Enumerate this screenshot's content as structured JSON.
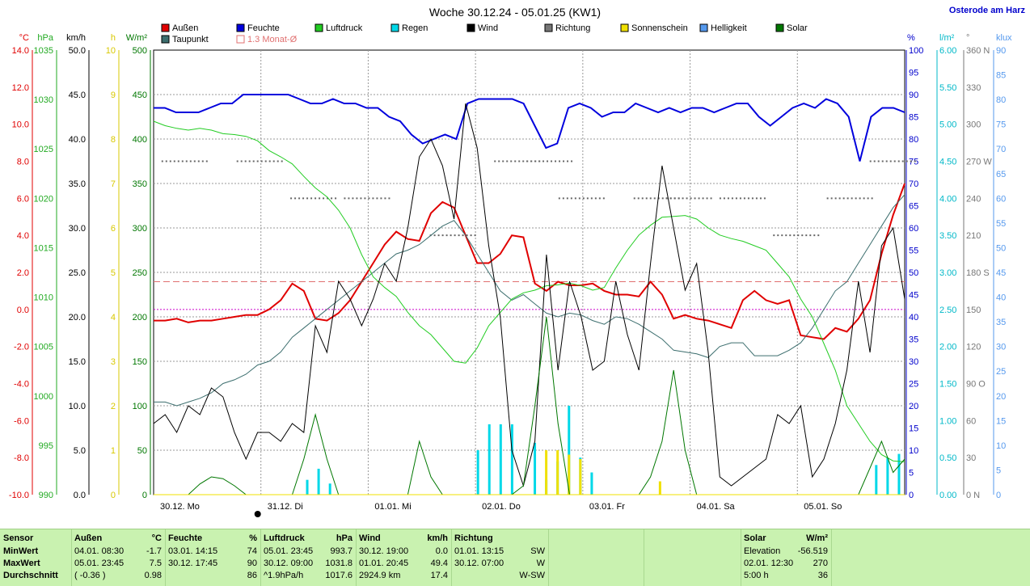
{
  "header": {
    "title": "Woche 30.12.24 - 05.01.25 (KW1)",
    "station": "Osterode am Harz"
  },
  "legend": [
    {
      "label": "Außen",
      "color": "#e00000"
    },
    {
      "label": "Taupunkt",
      "color": "#3c6e6e"
    },
    {
      "label": "Feuchte",
      "color": "#0000dd"
    },
    {
      "label": "1.3 Monat-Ø",
      "color": "#e07070"
    },
    {
      "label": "Luftdruck",
      "color": "#22cc22"
    },
    {
      "label": "Regen",
      "color": "#00d8e8"
    },
    {
      "label": "Wind",
      "color": "#000000"
    },
    {
      "label": "Richtung",
      "color": "#777777"
    },
    {
      "label": "Sonnenschein",
      "color": "#f0e000"
    },
    {
      "label": "Helligkeit",
      "color": "#5599ee"
    },
    {
      "label": "Solar",
      "color": "#007700"
    }
  ],
  "chart_data": {
    "type": "line",
    "x_labels": [
      "30.12. Mo",
      "31.12. Di",
      "01.01. Mi",
      "02.01. Do",
      "03.01. Fr",
      "04.01. Sa",
      "05.01. So"
    ],
    "axes_left": [
      {
        "unit": "°C",
        "color": "#e00000",
        "ticks": [
          "14.0",
          "12.0",
          "10.0",
          "8.0",
          "6.0",
          "4.0",
          "2.0",
          "0.0",
          "-2.0",
          "-4.0",
          "-6.0",
          "-8.0",
          "-10.0"
        ]
      },
      {
        "unit": "hPa",
        "color": "#22aa22",
        "ticks": [
          "1035",
          "1030",
          "1025",
          "1020",
          "1015",
          "1010",
          "1005",
          "1000",
          "995",
          "990"
        ]
      },
      {
        "unit": "km/h",
        "color": "#000000",
        "ticks": [
          "50.0",
          "45.0",
          "40.0",
          "35.0",
          "30.0",
          "25.0",
          "20.0",
          "15.0",
          "10.0",
          "5.0",
          "0.0"
        ]
      },
      {
        "unit": "h",
        "color": "#d8c800",
        "ticks": [
          "10",
          "9",
          "8",
          "7",
          "6",
          "5",
          "4",
          "3",
          "2",
          "1",
          "0"
        ]
      },
      {
        "unit": "W/m²",
        "color": "#007700",
        "ticks": [
          "500",
          "450",
          "400",
          "350",
          "300",
          "250",
          "200",
          "150",
          "100",
          "50",
          "0"
        ]
      }
    ],
    "axes_right": [
      {
        "unit": "%",
        "color": "#0000cc",
        "ticks": [
          "100",
          "95",
          "90",
          "85",
          "80",
          "75",
          "70",
          "65",
          "60",
          "55",
          "50",
          "45",
          "40",
          "35",
          "30",
          "25",
          "20",
          "15",
          "10",
          "5",
          "0"
        ]
      },
      {
        "unit": "l/m²",
        "color": "#00b8c8",
        "ticks": [
          "6.00",
          "5.50",
          "5.00",
          "4.50",
          "4.00",
          "3.50",
          "3.00",
          "2.50",
          "2.00",
          "1.50",
          "1.00",
          "0.50",
          "0.00"
        ]
      },
      {
        "unit": "°",
        "color": "#777777",
        "ticks": [
          "360 N",
          "330",
          "300",
          "270 W",
          "240",
          "210",
          "180 S",
          "150",
          "120",
          "90 O",
          "60",
          "30",
          "0 N"
        ]
      },
      {
        "unit": "klux",
        "color": "#5599ee",
        "ticks": [
          "90",
          "85",
          "80",
          "75",
          "70",
          "65",
          "60",
          "55",
          "50",
          "45",
          "40",
          "35",
          "30",
          "25",
          "20",
          "15",
          "10",
          "5",
          "0"
        ]
      }
    ],
    "avg_temp_line": 1.5,
    "series": [
      {
        "name": "Außen",
        "color": "#e00000",
        "axis": "temp",
        "values": [
          -0.6,
          -0.6,
          -0.5,
          -0.7,
          -0.6,
          -0.6,
          -0.5,
          -0.4,
          -0.3,
          -0.3,
          0.0,
          0.5,
          1.4,
          1.0,
          -0.5,
          -0.6,
          -0.2,
          0.5,
          1.5,
          2.5,
          3.5,
          4.2,
          3.8,
          3.7,
          5.2,
          5.8,
          5.5,
          4.0,
          2.5,
          2.5,
          3.0,
          4.0,
          3.9,
          1.4,
          1.0,
          1.5,
          1.3,
          1.3,
          1.4,
          1.0,
          0.8,
          0.8,
          0.7,
          1.5,
          0.8,
          -0.5,
          -0.3,
          -0.5,
          -0.6,
          -0.8,
          -1.0,
          0.5,
          1.0,
          0.5,
          0.3,
          0.5,
          -1.4,
          -1.5,
          -1.6,
          -1.0,
          -1.2,
          -0.5,
          0.5,
          3.0,
          5.1,
          6.8
        ]
      },
      {
        "name": "Taupunkt",
        "color": "#3c6e6e",
        "axis": "temp",
        "values": [
          -5.0,
          -5.0,
          -5.2,
          -5.0,
          -4.8,
          -4.5,
          -4.0,
          -3.8,
          -3.5,
          -3.0,
          -2.8,
          -2.3,
          -1.5,
          -1.0,
          -0.5,
          0.0,
          0.5,
          1.0,
          1.5,
          2.0,
          2.5,
          3.0,
          3.2,
          3.5,
          4.0,
          4.5,
          4.8,
          4.0,
          3.0,
          2.0,
          1.0,
          0.5,
          0.8,
          0.3,
          -0.2,
          -0.4,
          -0.2,
          -0.3,
          -0.6,
          -0.8,
          -0.4,
          -0.5,
          -0.8,
          -1.2,
          -1.6,
          -2.2,
          -2.3,
          -2.4,
          -2.6,
          -2.0,
          -1.8,
          -1.8,
          -2.5,
          -2.5,
          -2.5,
          -2.2,
          -1.8,
          -1.0,
          0.0,
          1.0,
          1.5,
          2.5,
          3.5,
          4.5,
          5.5,
          6.2
        ]
      },
      {
        "name": "Feuchte",
        "color": "#0000dd",
        "axis": "rh",
        "values": [
          87,
          87,
          86,
          86,
          86,
          87,
          88,
          88,
          90,
          90,
          90,
          90,
          90,
          89,
          88,
          88,
          89,
          88,
          88,
          87,
          87,
          85,
          84,
          81,
          79,
          80,
          81,
          80,
          88,
          89,
          89,
          89,
          89,
          88,
          83,
          78,
          79,
          87,
          88,
          87,
          85,
          86,
          86,
          88,
          87,
          86,
          87,
          86,
          87,
          87,
          86,
          87,
          88,
          88,
          85,
          83,
          85,
          87,
          88,
          87,
          89,
          88,
          85,
          75,
          85,
          87,
          87,
          86
        ]
      },
      {
        "name": "Luftdruck",
        "color": "#22cc22",
        "axis": "hpa",
        "values": [
          1032.0,
          1031.5,
          1031.2,
          1031.0,
          1031.2,
          1031.0,
          1030.6,
          1030.5,
          1030.3,
          1029.8,
          1028.7,
          1028.0,
          1027.2,
          1025.8,
          1024.5,
          1023.5,
          1022.0,
          1020.0,
          1017.0,
          1014.5,
          1013.3,
          1012.3,
          1010.5,
          1009.0,
          1008.0,
          1006.5,
          1005.0,
          1004.8,
          1006.5,
          1009.0,
          1010.5,
          1012.0,
          1012.7,
          1013.0,
          1013.5,
          1013.6,
          1013.8,
          1013.5,
          1013.0,
          1013.3,
          1015.5,
          1017.5,
          1019.2,
          1020.3,
          1021.2,
          1021.3,
          1021.4,
          1021.0,
          1020.0,
          1019.2,
          1018.8,
          1018.5,
          1018.0,
          1017.5,
          1016.0,
          1014.5,
          1012.0,
          1010.0,
          1007.0,
          1004.0,
          1000.0,
          998.0,
          996.0,
          994.5,
          993.8,
          993.7
        ]
      },
      {
        "name": "Wind",
        "color": "#000000",
        "axis": "kmh",
        "values": [
          8,
          9,
          7,
          10,
          9,
          12,
          11,
          7,
          4,
          7,
          7,
          6,
          8,
          7,
          19,
          16,
          24,
          22,
          19,
          22,
          26,
          24,
          30,
          38,
          40,
          37,
          31,
          44,
          39,
          28,
          20,
          5,
          1,
          6,
          27,
          14,
          24,
          20,
          14,
          15,
          24,
          18,
          14,
          26,
          37,
          30,
          23,
          26,
          16,
          2,
          1,
          2,
          3,
          4,
          9,
          8,
          10,
          2,
          4,
          8,
          14,
          24,
          16,
          28,
          30,
          22
        ]
      },
      {
        "name": "Solar",
        "color": "#007700",
        "axis": "wm2",
        "values": [
          0,
          0,
          0,
          0,
          12,
          20,
          18,
          10,
          0,
          0,
          0,
          0,
          0,
          40,
          90,
          40,
          0,
          0,
          0,
          0,
          0,
          0,
          0,
          60,
          20,
          0,
          0,
          0,
          0,
          0,
          0,
          0,
          10,
          100,
          200,
          80,
          0,
          0,
          0,
          0,
          0,
          0,
          0,
          20,
          60,
          140,
          50,
          0,
          0,
          0,
          0,
          0,
          0,
          0,
          0,
          0,
          0,
          0,
          0,
          0,
          0,
          0,
          30,
          60,
          25,
          40
        ]
      },
      {
        "name": "Regen",
        "color": "#00d8e8",
        "axis": "rain",
        "values": [
          0,
          0,
          0,
          0,
          0,
          0,
          0,
          0,
          0,
          0,
          0,
          0,
          0,
          0,
          0,
          0,
          0,
          0,
          0,
          0,
          0,
          0,
          0,
          0,
          0,
          0,
          0,
          0,
          0,
          0,
          0,
          0,
          0,
          0,
          0,
          0,
          0,
          0,
          0,
          0,
          0,
          0,
          0,
          0,
          0,
          0,
          0,
          0,
          0,
          0,
          0,
          0,
          0,
          0,
          0,
          0,
          0,
          0,
          0,
          0,
          0,
          0,
          0,
          0,
          0,
          0
        ]
      },
      {
        "name": "Sonnenschein",
        "color": "#f0e000",
        "axis": "sun",
        "values": [
          0,
          0,
          0,
          0,
          0,
          0,
          0,
          0,
          0,
          0,
          0,
          0,
          0,
          0,
          0,
          0,
          0,
          0,
          0,
          0,
          0,
          0,
          0,
          0,
          0,
          0,
          0,
          0,
          0,
          0,
          0,
          0,
          0,
          0,
          0,
          0,
          0,
          0,
          0,
          0,
          0,
          0,
          0,
          0,
          0,
          0,
          0,
          0,
          0,
          0,
          0,
          0,
          0,
          0,
          0,
          0,
          0,
          0,
          0,
          0,
          0,
          0,
          0,
          0,
          0,
          0
        ]
      }
    ],
    "rain_bars": [
      0,
      0,
      0,
      0,
      0,
      0,
      0,
      0,
      0,
      0,
      0,
      0,
      0,
      0.2,
      0.35,
      0.15,
      0,
      0,
      0,
      0,
      0,
      0,
      0,
      0,
      0,
      0,
      0,
      0,
      0.6,
      0.95,
      0.95,
      0.95,
      0,
      0.7,
      0.2,
      0.45,
      1.2,
      0.5,
      0.3,
      0,
      0,
      0,
      0,
      0,
      0,
      0,
      0,
      0,
      0,
      0,
      0,
      0,
      0,
      0,
      0,
      0,
      0,
      0,
      0,
      0,
      0,
      0,
      0,
      0.4,
      0.5,
      0.55
    ],
    "sun_bars": [
      0,
      0,
      0,
      0,
      0,
      0,
      0,
      0,
      0,
      0,
      0,
      0,
      0,
      0,
      0,
      0,
      0,
      0,
      0,
      0,
      0,
      0,
      0,
      0,
      0,
      0,
      0,
      0,
      0,
      0,
      0,
      0,
      0,
      0,
      1,
      1,
      0.9,
      0.8,
      0,
      0,
      0,
      0,
      0,
      0,
      0.3,
      0,
      0,
      0,
      0,
      0,
      0,
      0,
      0,
      0,
      0,
      0,
      0,
      0,
      0,
      0,
      0,
      0,
      0,
      0,
      0,
      0
    ],
    "direction_points": [
      [
        0.3,
        270
      ],
      [
        1.0,
        270
      ],
      [
        1.5,
        240
      ],
      [
        2.0,
        240
      ],
      [
        2.8,
        210
      ],
      [
        3.4,
        270
      ],
      [
        3.7,
        270
      ],
      [
        4.0,
        240
      ],
      [
        4.7,
        240
      ],
      [
        5.0,
        240
      ],
      [
        5.5,
        240
      ],
      [
        6.0,
        210
      ],
      [
        6.5,
        240
      ],
      [
        6.9,
        270
      ]
    ]
  },
  "stats": {
    "sensor": {
      "header": "Sensor",
      "rows": [
        "MinWert",
        "MaxWert",
        "Durchschnitt"
      ]
    },
    "aussen": {
      "header": "Außen",
      "unit": "°C",
      "rows": [
        [
          "04.01.  08:30",
          "-1.7"
        ],
        [
          "05.01.  23:45",
          "7.5"
        ],
        [
          "( -0.36 )",
          "0.98"
        ]
      ]
    },
    "feuchte": {
      "header": "Feuchte",
      "unit": "%",
      "rows": [
        [
          "03.01.  14:15",
          "74"
        ],
        [
          "30.12.  17:45",
          "90"
        ],
        [
          "",
          "86"
        ]
      ]
    },
    "luftdruck": {
      "header": "Luftdruck",
      "unit": "hPa",
      "rows": [
        [
          "05.01.  23:45",
          "993.7"
        ],
        [
          "30.12.  09:00",
          "1031.8"
        ],
        [
          "^1.9hPa/h",
          "1017.6"
        ]
      ]
    },
    "wind": {
      "header": "Wind",
      "unit": "km/h",
      "rows": [
        [
          "30.12.  19:00",
          "0.0"
        ],
        [
          "01.01.  20:45",
          "49.4"
        ],
        [
          "2924.9 km",
          "17.4"
        ]
      ]
    },
    "richtung": {
      "header": "Richtung",
      "rows": [
        [
          "01.01.  13:15",
          "SW"
        ],
        [
          "30.12.  07:00",
          "W"
        ],
        [
          "",
          "W-SW"
        ]
      ]
    },
    "solar": {
      "header": "Solar",
      "unit": "W/m²",
      "rows": [
        [
          "Elevation",
          "-56.519"
        ],
        [
          "02.01.  12:30",
          "270"
        ],
        [
          "5:00 h",
          "36"
        ]
      ]
    }
  }
}
